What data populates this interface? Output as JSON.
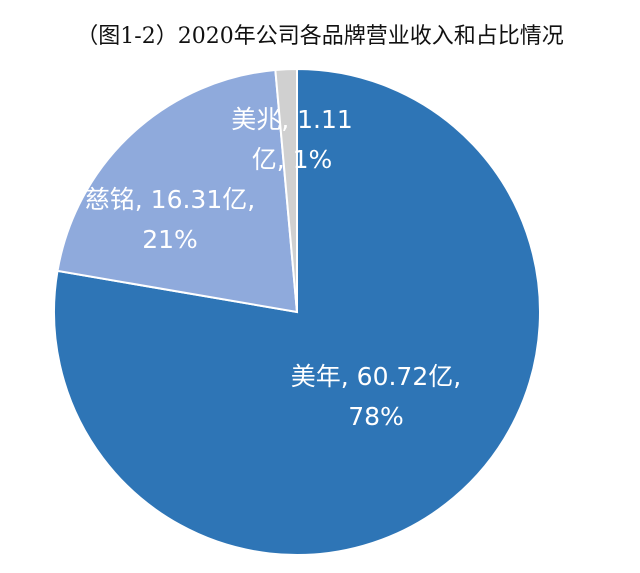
{
  "chart_data": {
    "type": "pie",
    "title": "（图1-2）2020年公司各品牌营业收入和占比情况",
    "slices": [
      {
        "name": "美年",
        "value": 60.72,
        "unit": "亿",
        "percent": "78%",
        "color": "#2e75b6",
        "label_lines": [
          "美年, 60.72亿,",
          "78%"
        ]
      },
      {
        "name": "慈铭",
        "value": 16.31,
        "unit": "亿",
        "percent": "21%",
        "color": "#8faadc",
        "label_lines": [
          "慈铭, 16.31亿,",
          "21%"
        ]
      },
      {
        "name": "美兆",
        "value": 1.11,
        "unit": "亿",
        "percent": "1%",
        "color": "#d0d0d0",
        "label_lines": [
          "美兆, 1.11",
          "亿, 1%"
        ]
      }
    ]
  }
}
